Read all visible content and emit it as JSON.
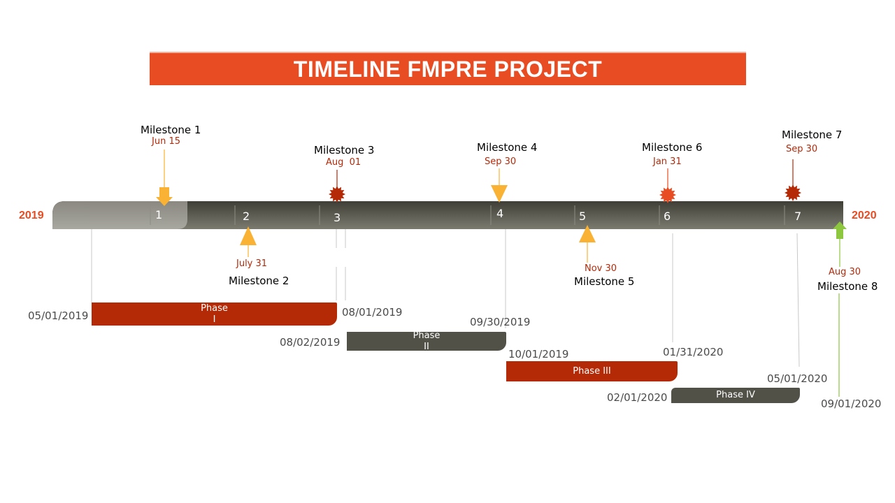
{
  "title": "TIMELINE FMPRE PROJECT",
  "timeline": {
    "start_year": "2019",
    "end_year": "2020",
    "ticks": [
      "1",
      "2",
      "3",
      "4",
      "5",
      "6",
      "7"
    ]
  },
  "milestones": [
    {
      "name": "Milestone 1",
      "date": "Jun 15",
      "marker": "arrow-down-icon",
      "color": "#F9B233"
    },
    {
      "name": "Milestone 2",
      "date": "July 31",
      "marker": "triangle-up-icon",
      "color": "#F9B233"
    },
    {
      "name": "Milestone 3",
      "date": "Aug  01",
      "marker": "starburst-icon",
      "color": "#B52A06"
    },
    {
      "name": "Milestone 4",
      "date": "Sep 30",
      "marker": "triangle-down-icon",
      "color": "#F9B233"
    },
    {
      "name": "Milestone 5",
      "date": "Nov 30",
      "marker": "triangle-up-icon",
      "color": "#F9B233"
    },
    {
      "name": "Milestone 6",
      "date": "Jan 31",
      "marker": "starburst-icon",
      "color": "#E84C22"
    },
    {
      "name": "Milestone 7",
      "date": "Sep 30",
      "marker": "starburst-icon",
      "color": "#B52A06"
    },
    {
      "name": "Milestone 8",
      "date": "Aug 30",
      "marker": "arrow-up-icon",
      "color": "#8DC63F"
    }
  ],
  "phases": [
    {
      "label_line1": "Phase",
      "label_line2": "I",
      "start": "05/01/2019",
      "end": "08/01/2019",
      "color": "#B52A06"
    },
    {
      "label_line1": "Phase",
      "label_line2": "II",
      "start": "08/02/2019",
      "end": "09/30/2019",
      "color": "#525148"
    },
    {
      "label_line1": "Phase III",
      "label_line2": "",
      "start": "10/01/2019",
      "end": "01/31/2020",
      "color": "#B52A06"
    },
    {
      "label_line1": "Phase IV",
      "label_line2": "",
      "start": "02/01/2020",
      "end": "05/01/2020",
      "color": "#525148"
    }
  ],
  "extra_date": "09/01/2020",
  "colors": {
    "accent": "#E84C22",
    "dark_red": "#B52A06",
    "gray": "#525148",
    "yellow": "#F9B233",
    "green": "#8DC63F"
  }
}
